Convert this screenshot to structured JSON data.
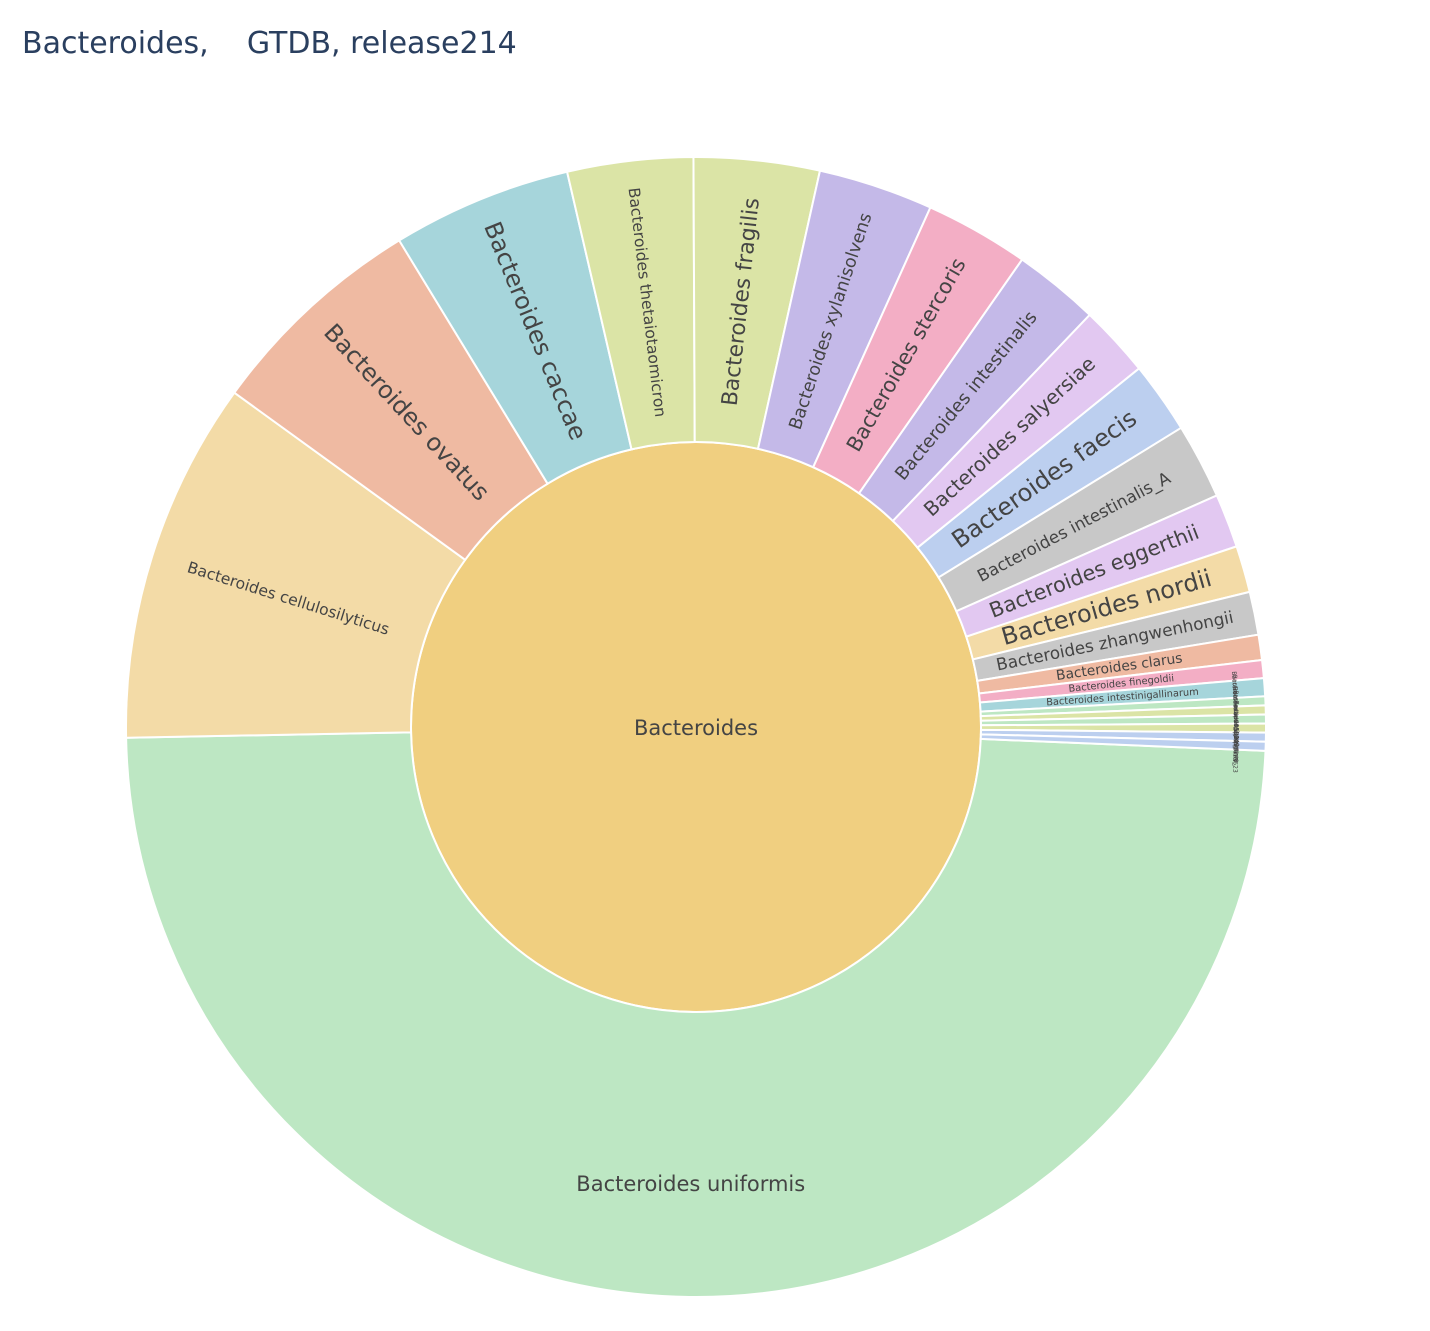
{
  "chart_data": {
    "type": "sunburst",
    "title": "Bacteroides,    GTDB, release214",
    "root": {
      "label": "Bacteroides",
      "color": "#f0cf80"
    },
    "children": [
      {
        "label": "Bacteroides uniformis",
        "value": 48.2,
        "color": "#bde7c3"
      },
      {
        "label": "Bacteroides cellulosilyticus",
        "value": 10.1,
        "color": "#f3dba7"
      },
      {
        "label": "Bacteroides ovatus",
        "value": 6.2,
        "color": "#efbaa2"
      },
      {
        "label": "Bacteroides caccae",
        "value": 5.0,
        "color": "#a6d5db"
      },
      {
        "label": "Bacteroides thetaiotaomicron",
        "value": 3.5,
        "color": "#dbe4a6"
      },
      {
        "label": "Bacteroides fragilis",
        "value": 3.5,
        "color": "#dbe4a6"
      },
      {
        "label": "Bacteroides xylanisolvens",
        "value": 3.2,
        "color": "#c4b9e8"
      },
      {
        "label": "Bacteroides stercoris",
        "value": 2.9,
        "color": "#f3aec5"
      },
      {
        "label": "Bacteroides intestinalis",
        "value": 2.4,
        "color": "#c4b9e8"
      },
      {
        "label": "Bacteroides salyersiae",
        "value": 2.0,
        "color": "#e2c8f1"
      },
      {
        "label": "Bacteroides faecis",
        "value": 2.0,
        "color": "#bccfef"
      },
      {
        "label": "Bacteroides intestinalis_A",
        "value": 2.1,
        "color": "#c8c8c8"
      },
      {
        "label": "Bacteroides eggerthii",
        "value": 1.5,
        "color": "#e2c8f1"
      },
      {
        "label": "Bacteroides nordii",
        "value": 1.3,
        "color": "#f3dba7"
      },
      {
        "label": "Bacteroides zhangwenhongii",
        "value": 1.2,
        "color": "#c8c8c8"
      },
      {
        "label": "Bacteroides clarus",
        "value": 0.7,
        "color": "#efbaa2"
      },
      {
        "label": "Bacteroides finegoldii",
        "value": 0.5,
        "color": "#f3aec5"
      },
      {
        "label": "Bacteroides intestinigallinarum",
        "value": 0.5,
        "color": "#a6d5db"
      },
      {
        "label": "Bacteroides faecis_?",
        "value": 0.25,
        "color": "#bde7c3"
      },
      {
        "label": "Bacteroides sp9055240",
        "value": 0.25,
        "color": "#dbe4a6"
      },
      {
        "label": "Bacteroides fragilis_A",
        "value": 0.25,
        "color": "#bde7c3"
      },
      {
        "label": "Bacteroides sp9055240_",
        "value": 0.25,
        "color": "#dbe4a6"
      },
      {
        "label": "Bacteroides sp9013623",
        "value": 0.25,
        "color": "#bccfef"
      },
      {
        "label": "UNKNOWN",
        "value": 0.25,
        "color": "#bccfef"
      }
    ]
  }
}
